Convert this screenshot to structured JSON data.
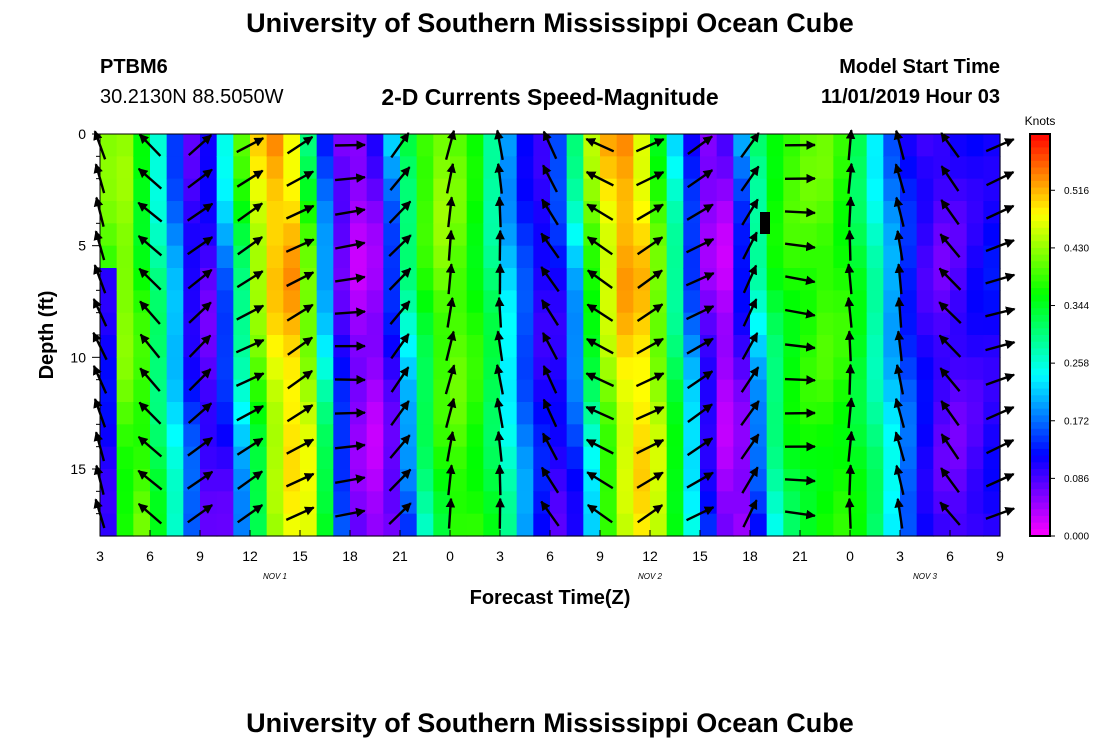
{
  "header": {
    "title": "University of Southern Mississippi Ocean Cube",
    "station_id": "PTBM6",
    "station_coords": "30.2130N 88.5050W",
    "plot_title": "2-D Currents Speed-Magnitude",
    "start_label": "Model Start Time",
    "start_value": "11/01/2019 Hour 03"
  },
  "footer": {
    "title": "University of Southern Mississippi Ocean Cube"
  },
  "chart_data": {
    "type": "heatmap",
    "title": "2-D Currents Speed-Magnitude",
    "xlabel": "Forecast Time(Z)",
    "ylabel": "Depth (ft)",
    "x_ticks": [
      "3",
      "6",
      "9",
      "12",
      "15",
      "18",
      "21",
      "0",
      "3",
      "6",
      "9",
      "12",
      "15",
      "18",
      "21",
      "0",
      "3",
      "6",
      "9"
    ],
    "x_hours": [
      0,
      3,
      6,
      9,
      12,
      15,
      18,
      21,
      24,
      27,
      30,
      33,
      36,
      39,
      42,
      45,
      48,
      51,
      54
    ],
    "date_labels": [
      {
        "text": "NOV  1",
        "hour": 10.5
      },
      {
        "text": "NOV  2",
        "hour": 33
      },
      {
        "text": "NOV  3",
        "hour": 49.5
      }
    ],
    "y_ticks": [
      "0",
      "5",
      "10",
      "15"
    ],
    "y_tick_values": [
      0,
      5,
      10,
      15
    ],
    "ylim": [
      0,
      18
    ],
    "xlim": [
      0,
      54
    ],
    "colorbar": {
      "label": "Knots",
      "ticks": [
        "0.516",
        "0.430",
        "0.344",
        "0.258",
        "0.172",
        "0.086",
        "0.000"
      ],
      "tick_values": [
        0.516,
        0.43,
        0.344,
        0.258,
        0.172,
        0.086,
        0.0
      ],
      "range": [
        0,
        0.6
      ]
    },
    "speed_profile_knots": [
      {
        "hour": 0,
        "speed": 0.4
      },
      {
        "hour": 1,
        "speed": 0.45
      },
      {
        "hour": 2,
        "speed": 0.38
      },
      {
        "hour": 3,
        "speed": 0.3
      },
      {
        "hour": 4,
        "speed": 0.2
      },
      {
        "hour": 5,
        "speed": 0.1
      },
      {
        "hour": 6,
        "speed": 0.08
      },
      {
        "hour": 7,
        "speed": 0.18
      },
      {
        "hour": 8,
        "speed": 0.33
      },
      {
        "hour": 9,
        "speed": 0.46
      },
      {
        "hour": 10,
        "speed": 0.52
      },
      {
        "hour": 11,
        "speed": 0.54
      },
      {
        "hour": 12,
        "speed": 0.42
      },
      {
        "hour": 13,
        "speed": 0.2
      },
      {
        "hour": 14,
        "speed": 0.08
      },
      {
        "hour": 15,
        "speed": 0.04
      },
      {
        "hour": 16,
        "speed": 0.05
      },
      {
        "hour": 17,
        "speed": 0.14
      },
      {
        "hour": 18,
        "speed": 0.3
      },
      {
        "hour": 19,
        "speed": 0.38
      },
      {
        "hour": 20,
        "speed": 0.43
      },
      {
        "hour": 21,
        "speed": 0.42
      },
      {
        "hour": 22,
        "speed": 0.38
      },
      {
        "hour": 23,
        "speed": 0.32
      },
      {
        "hour": 24,
        "speed": 0.22
      },
      {
        "hour": 25,
        "speed": 0.15
      },
      {
        "hour": 26,
        "speed": 0.1
      },
      {
        "hour": 27,
        "speed": 0.12
      },
      {
        "hour": 28,
        "speed": 0.22
      },
      {
        "hour": 29,
        "speed": 0.4
      },
      {
        "hour": 30,
        "speed": 0.48
      },
      {
        "hour": 31,
        "speed": 0.54
      },
      {
        "hour": 32,
        "speed": 0.52
      },
      {
        "hour": 33,
        "speed": 0.42
      },
      {
        "hour": 34,
        "speed": 0.3
      },
      {
        "hour": 35,
        "speed": 0.16
      },
      {
        "hour": 36,
        "speed": 0.06
      },
      {
        "hour": 37,
        "speed": 0.03
      },
      {
        "hour": 38,
        "speed": 0.12
      },
      {
        "hour": 39,
        "speed": 0.28
      },
      {
        "hour": 40,
        "speed": 0.36
      },
      {
        "hour": 41,
        "speed": 0.39
      },
      {
        "hour": 42,
        "speed": 0.4
      },
      {
        "hour": 43,
        "speed": 0.41
      },
      {
        "hour": 44,
        "speed": 0.39
      },
      {
        "hour": 45,
        "speed": 0.35
      },
      {
        "hour": 46,
        "speed": 0.28
      },
      {
        "hour": 47,
        "speed": 0.2
      },
      {
        "hour": 48,
        "speed": 0.14
      },
      {
        "hour": 49,
        "speed": 0.1
      },
      {
        "hour": 50,
        "speed": 0.08
      },
      {
        "hour": 51,
        "speed": 0.09
      },
      {
        "hour": 52,
        "speed": 0.11
      },
      {
        "hour": 53,
        "speed": 0.12
      },
      {
        "hour": 54,
        "speed": 0.12
      }
    ],
    "current_vectors": [
      {
        "hour": 0,
        "direction_deg": 340
      },
      {
        "hour": 3,
        "direction_deg": 315
      },
      {
        "hour": 6,
        "direction_deg": 50
      },
      {
        "hour": 9,
        "direction_deg": 60
      },
      {
        "hour": 12,
        "direction_deg": 60
      },
      {
        "hour": 15,
        "direction_deg": 85
      },
      {
        "hour": 18,
        "direction_deg": 40
      },
      {
        "hour": 21,
        "direction_deg": 10
      },
      {
        "hour": 24,
        "direction_deg": 355
      },
      {
        "hour": 27,
        "direction_deg": 330
      },
      {
        "hour": 30,
        "direction_deg": 300
      },
      {
        "hour": 33,
        "direction_deg": 60
      },
      {
        "hour": 36,
        "direction_deg": 60
      },
      {
        "hour": 39,
        "direction_deg": 30
      },
      {
        "hour": 42,
        "direction_deg": 95
      },
      {
        "hour": 45,
        "direction_deg": 0
      },
      {
        "hour": 48,
        "direction_deg": 350
      },
      {
        "hour": 51,
        "direction_deg": 320
      },
      {
        "hour": 54,
        "direction_deg": 70
      }
    ]
  }
}
